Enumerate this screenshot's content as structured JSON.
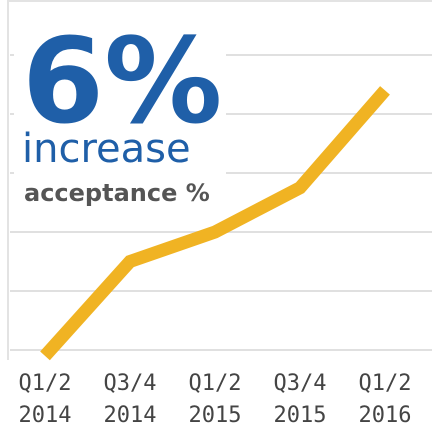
{
  "chart_data": {
    "type": "line",
    "headline": "6%",
    "subheadline": "increase",
    "label": "acceptance %",
    "categories": [
      "Q1/2 2014",
      "Q3/4 2014",
      "Q1/2 2015",
      "Q3/4 2015",
      "Q1/2 2016"
    ],
    "values": [
      -0.1,
      1.5,
      2.0,
      2.75,
      4.4
    ],
    "color": "#f0b323",
    "ylim": [
      0,
      5
    ],
    "yticks": [
      0,
      1,
      2,
      3,
      4,
      5
    ],
    "grid": true
  }
}
